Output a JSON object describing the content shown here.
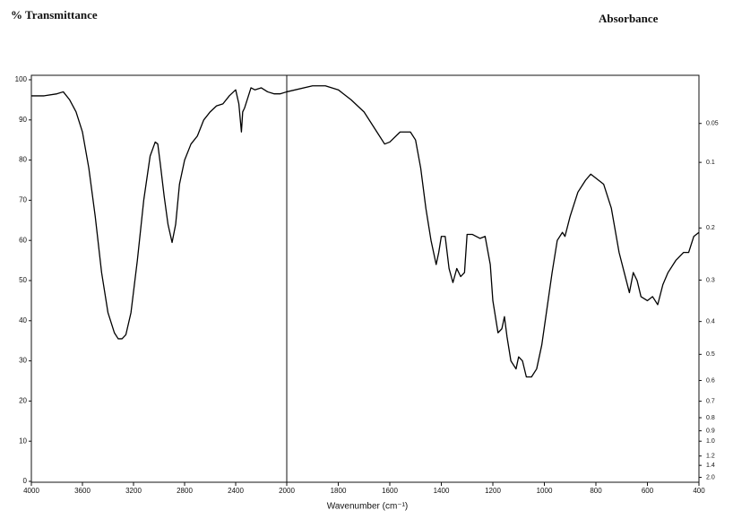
{
  "chart_data": {
    "type": "line",
    "ylabel": "% Transmittance",
    "y2label": "Absorbance",
    "xlabel": "Wavenumber (cm⁻¹)",
    "xlim": [
      4000,
      400
    ],
    "x_break": 2000,
    "xticks": [
      4000,
      3600,
      3200,
      2800,
      2400,
      2000,
      1800,
      1600,
      1400,
      1200,
      1000,
      800,
      600,
      400
    ],
    "ylim": [
      0,
      100
    ],
    "yticks": [
      0,
      10,
      20,
      30,
      40,
      50,
      60,
      70,
      80,
      90,
      100
    ],
    "y2_scale": "absorbance",
    "y2ticks": [
      0.05,
      0.1,
      0.2,
      0.3,
      0.4,
      0.5,
      0.6,
      0.7,
      0.8,
      0.9,
      {
        "value": 1,
        "label": "1.0"
      },
      1.2,
      1.4,
      {
        "value": 2,
        "label": "2.0"
      }
    ],
    "x": [
      4000,
      3900,
      3800,
      3750,
      3700,
      3650,
      3600,
      3550,
      3500,
      3450,
      3400,
      3350,
      3320,
      3290,
      3260,
      3220,
      3170,
      3120,
      3070,
      3030,
      3010,
      2990,
      2960,
      2930,
      2898,
      2870,
      2840,
      2800,
      2750,
      2700,
      2650,
      2600,
      2550,
      2500,
      2450,
      2400,
      2375,
      2355,
      2345,
      2330,
      2310,
      2280,
      2250,
      2200,
      2150,
      2100,
      2050,
      2000,
      1900,
      1850,
      1800,
      1750,
      1700,
      1650,
      1620,
      1600,
      1560,
      1520,
      1500,
      1480,
      1460,
      1440,
      1420,
      1410,
      1400,
      1385,
      1370,
      1355,
      1340,
      1325,
      1310,
      1300,
      1280,
      1250,
      1230,
      1210,
      1200,
      1180,
      1165,
      1155,
      1145,
      1130,
      1110,
      1100,
      1085,
      1070,
      1050,
      1030,
      1010,
      990,
      970,
      950,
      930,
      920,
      900,
      870,
      840,
      820,
      800,
      770,
      740,
      710,
      690,
      670,
      655,
      640,
      625,
      600,
      580,
      560,
      540,
      520,
      490,
      460,
      440,
      420,
      400
    ],
    "series": [
      {
        "color": "#000000",
        "values": [
          96,
          96,
          96.5,
          97,
          95,
          92,
          87,
          78,
          66,
          52,
          42,
          37,
          35.5,
          35.5,
          36.5,
          42,
          55,
          70,
          81,
          84.5,
          84,
          79,
          71,
          64,
          59.5,
          64,
          74,
          80,
          84,
          86,
          90,
          92,
          93.5,
          94,
          96,
          97.5,
          94,
          87,
          92,
          93,
          95,
          98,
          97.5,
          98,
          97,
          96.5,
          96.5,
          97,
          98.5,
          98.5,
          97.5,
          95,
          92,
          87,
          84,
          84.5,
          87,
          87,
          85,
          78,
          68,
          60,
          54,
          57,
          61,
          61,
          53,
          49.5,
          53,
          51,
          52,
          61.5,
          61.5,
          60.5,
          61,
          54,
          45,
          37,
          38,
          41,
          36,
          30,
          28,
          31,
          30,
          26,
          26,
          28,
          34,
          43,
          52,
          60,
          62,
          61,
          66,
          72,
          75,
          76.5,
          75.5,
          74,
          68,
          57,
          52,
          47,
          52,
          50,
          46,
          45,
          46,
          44,
          49,
          52,
          55,
          57,
          57,
          61,
          62
        ]
      }
    ]
  }
}
